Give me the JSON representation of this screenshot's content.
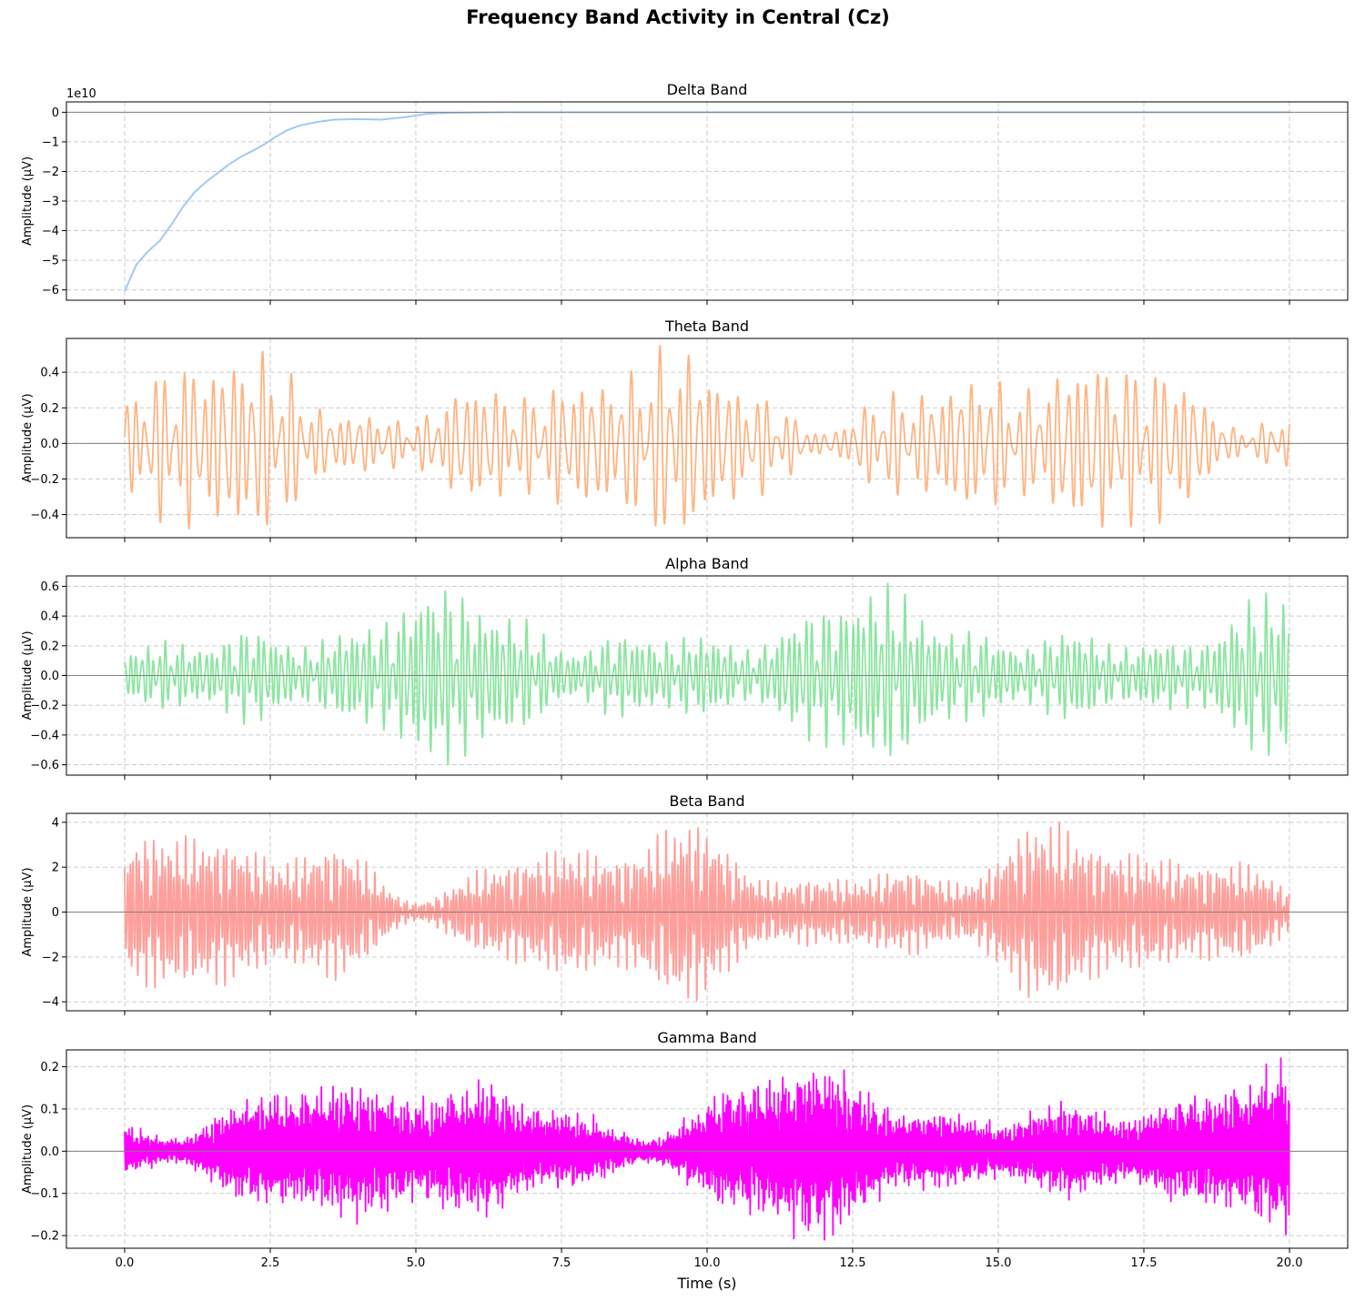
{
  "figure_title": "Frequency Band Activity in Central (Cz)",
  "chart_data": {
    "type": "line",
    "title": "Frequency Band Activity in Central (Cz)",
    "xlabel": "Time (s)",
    "xlim": [
      -1.0,
      21.0
    ],
    "x_ticks": [
      0.0,
      2.5,
      5.0,
      7.5,
      10.0,
      12.5,
      15.0,
      17.5,
      20.0
    ],
    "x_tick_labels": [
      "0.0",
      "2.5",
      "5.0",
      "7.5",
      "10.0",
      "12.5",
      "15.0",
      "17.5",
      "20.0"
    ],
    "grid": true,
    "panels": [
      {
        "name": "delta",
        "title": "Delta Band",
        "ylabel": "Amplitude (µV)",
        "offset_label": "1e10",
        "color": "#a1c9f4",
        "ylim": [
          -6.35,
          0.35
        ],
        "y_ticks": [
          0,
          -1,
          -2,
          -3,
          -4,
          -5,
          -6
        ],
        "y_tick_labels": [
          "0",
          "−1",
          "−2",
          "−3",
          "−4",
          "−5",
          "−6"
        ],
        "signal": {
          "kind": "trend",
          "points": [
            [
              0.0,
              -6.05
            ],
            [
              0.1,
              -5.6
            ],
            [
              0.2,
              -5.15
            ],
            [
              0.4,
              -4.7
            ],
            [
              0.6,
              -4.35
            ],
            [
              0.8,
              -3.8
            ],
            [
              1.0,
              -3.2
            ],
            [
              1.2,
              -2.7
            ],
            [
              1.4,
              -2.35
            ],
            [
              1.6,
              -2.05
            ],
            [
              1.8,
              -1.75
            ],
            [
              2.0,
              -1.5
            ],
            [
              2.2,
              -1.3
            ],
            [
              2.4,
              -1.08
            ],
            [
              2.6,
              -0.82
            ],
            [
              2.8,
              -0.6
            ],
            [
              3.0,
              -0.45
            ],
            [
              3.3,
              -0.33
            ],
            [
              3.6,
              -0.25
            ],
            [
              4.0,
              -0.23
            ],
            [
              4.4,
              -0.25
            ],
            [
              4.8,
              -0.17
            ],
            [
              5.2,
              -0.05
            ],
            [
              5.6,
              -0.02
            ],
            [
              6.5,
              0.0
            ],
            [
              20.0,
              0.0
            ]
          ]
        }
      },
      {
        "name": "theta",
        "title": "Theta Band",
        "ylabel": "Amplitude (µV)",
        "color": "#ffb482",
        "ylim": [
          -0.53,
          0.59
        ],
        "y_ticks": [
          0.4,
          0.2,
          0.0,
          -0.2,
          -0.4
        ],
        "y_tick_labels": [
          "0.4",
          "0.2",
          "0.0",
          "−0.2",
          "−0.4"
        ],
        "signal": {
          "kind": "oscillation",
          "freq": 6.0,
          "peak": 0.55,
          "trough": -0.48,
          "samples_per_s": 200,
          "seed": 11
        }
      },
      {
        "name": "alpha",
        "title": "Alpha Band",
        "ylabel": "Amplitude (µV)",
        "color": "#8de5a1",
        "ylim": [
          -0.67,
          0.67
        ],
        "y_ticks": [
          0.6,
          0.4,
          0.2,
          0.0,
          -0.2,
          -0.4,
          -0.6
        ],
        "y_tick_labels": [
          "0.6",
          "0.4",
          "0.2",
          "0.0",
          "−0.2",
          "−0.4",
          "−0.6"
        ],
        "signal": {
          "kind": "oscillation",
          "freq": 10.0,
          "peak": 0.62,
          "trough": -0.6,
          "samples_per_s": 250,
          "seed": 23
        }
      },
      {
        "name": "beta",
        "title": "Beta Band",
        "ylabel": "Amplitude (µV)",
        "color": "#ff9f9b",
        "ylim": [
          -4.4,
          4.4
        ],
        "y_ticks": [
          4,
          2,
          0,
          -2,
          -4
        ],
        "y_tick_labels": [
          "4",
          "2",
          "0",
          "−2",
          "−4"
        ],
        "signal": {
          "kind": "oscillation",
          "freq": 20.0,
          "peak": 4.0,
          "trough": -3.95,
          "samples_per_s": 400,
          "seed": 37
        }
      },
      {
        "name": "gamma",
        "title": "Gamma Band",
        "ylabel": "Amplitude (µV)",
        "color": "#ff00ff",
        "ylim": [
          -0.23,
          0.24
        ],
        "y_ticks": [
          0.2,
          0.1,
          0.0,
          -0.1,
          -0.2
        ],
        "y_tick_labels": [
          "0.2",
          "0.1",
          "0.0",
          "−0.1",
          "−0.2"
        ],
        "signal": {
          "kind": "noise",
          "freq": 40.0,
          "peak": 0.22,
          "trough": -0.21,
          "samples_per_s": 500,
          "seed": 53
        }
      }
    ]
  }
}
